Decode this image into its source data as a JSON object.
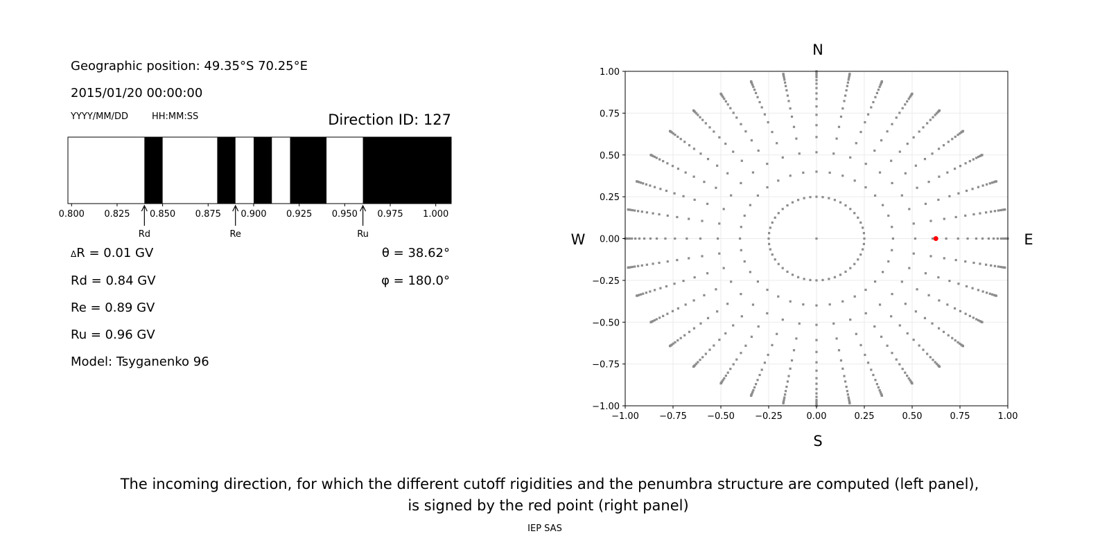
{
  "left_panel": {
    "geo_position": "Geographic position: 49.35°S 70.25°E",
    "datetime": "2015/01/20 00:00:00",
    "date_format": "YYYY/MM/DD",
    "time_format": "HH:MM:SS",
    "direction_id": "Direction ID: 127",
    "delta_r_symbol": "Δ",
    "delta_r": "R = 0.01 GV",
    "rd": "Rd = 0.84 GV",
    "re": "Re = 0.89 GV",
    "ru": "Ru = 0.96 GV",
    "model": "Model: Tsyganenko 96",
    "theta": "θ = 38.62°",
    "phi": "φ = 180.0°"
  },
  "chart_data": [
    {
      "type": "bar",
      "description_kind": "penumbra",
      "xlim": [
        0.798,
        1.0085
      ],
      "xticks": [
        0.8,
        0.825,
        0.85,
        0.875,
        0.9,
        0.925,
        0.95,
        0.975,
        1.0
      ],
      "xtick_labels": [
        "0.800",
        "0.825",
        "0.850",
        "0.875",
        "0.900",
        "0.925",
        "0.950",
        "0.975",
        "1.000"
      ],
      "forbidden_intervals": [
        [
          0.84,
          0.85
        ],
        [
          0.88,
          0.89
        ],
        [
          0.9,
          0.91
        ],
        [
          0.92,
          0.94
        ],
        [
          0.96,
          1.0085
        ]
      ],
      "colors": {
        "forbidden": "#000000",
        "allowed": "#ffffff"
      },
      "markers": [
        {
          "label": "Rd",
          "value": 0.84
        },
        {
          "label": "Re",
          "value": 0.89
        },
        {
          "label": "Ru",
          "value": 0.96
        }
      ]
    },
    {
      "type": "scatter",
      "xlim": [
        -1,
        1
      ],
      "ylim": [
        -1,
        1
      ],
      "grid": true,
      "xtick_labels": [
        "−1.00",
        "−0.75",
        "−0.50",
        "−0.25",
        "0.00",
        "0.25",
        "0.50",
        "0.75",
        "1.00"
      ],
      "ytick_labels": [
        "−1.00",
        "−0.75",
        "−0.50",
        "−0.25",
        "0.00",
        "0.25",
        "0.50",
        "0.75",
        "1.00"
      ],
      "ticks": [
        -1,
        -0.75,
        -0.5,
        -0.25,
        0,
        0.25,
        0.5,
        0.75,
        1
      ],
      "compass": {
        "north": "N",
        "south": "S",
        "west": "W",
        "east": "E"
      },
      "direction_grid": {
        "color": "#8c8c8c",
        "rings": [
          {
            "r": 0,
            "count": 1
          },
          {
            "r": 0.25,
            "count": 48
          },
          {
            "r": 0.4,
            "count": 36
          },
          {
            "r": 0.516,
            "count": 36
          },
          {
            "r": 0.607,
            "count": 36
          },
          {
            "r": 0.678,
            "count": 36
          },
          {
            "r": 0.74,
            "count": 36
          },
          {
            "r": 0.79,
            "count": 36
          },
          {
            "r": 0.835,
            "count": 36
          },
          {
            "r": 0.868,
            "count": 36
          },
          {
            "r": 0.9,
            "count": 36
          },
          {
            "r": 0.926,
            "count": 36
          },
          {
            "r": 0.947,
            "count": 36
          },
          {
            "r": 0.965,
            "count": 36
          },
          {
            "r": 0.977,
            "count": 36
          },
          {
            "r": 0.987,
            "count": 36
          },
          {
            "r": 0.994,
            "count": 36
          },
          {
            "r": 0.998,
            "count": 36
          },
          {
            "r": 1.0,
            "count": 36
          }
        ]
      },
      "selected_point": {
        "x": 0.624,
        "y": 0.0,
        "color": "#ff0000"
      }
    }
  ],
  "caption": {
    "line1": "The incoming direction, for which the different cutoff rigidities and the penumbra structure are computed (left panel),",
    "line2": "is signed by the red point (right panel)"
  },
  "footer": "IEP SAS"
}
